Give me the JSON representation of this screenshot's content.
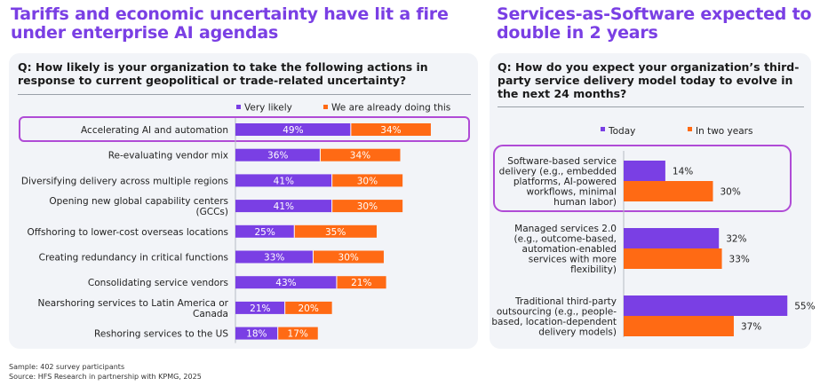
{
  "left": {
    "title_line1": "Tariffs and economic uncertainty have lit a fire",
    "title_line2": "under enterprise AI agendas",
    "question": "Q: How likely is your organization to take the following actions in response to current geopolitical or trade-related uncertainty?"
  },
  "right": {
    "title_line1": "Services-as-Software expected to",
    "title_line2": "double in 2 years",
    "question": "Q: How do you expect your organization’s third-party service delivery model today to evolve in the next 24 months?"
  },
  "footnotes": {
    "sample": "Sample: 402 survey participants",
    "source": "Source: HFS Research in partnership with KPMG, 2025"
  },
  "colors": {
    "purple": "#7a3fe4",
    "orange": "#ff6a14",
    "highlight": "#b04bd6"
  },
  "chart_data": [
    {
      "type": "bar",
      "orientation": "horizontal",
      "stacked": true,
      "title": "Tariffs and economic uncertainty have lit a fire under enterprise AI agendas",
      "legend_position": "top-right",
      "value_suffix": "%",
      "highlight_index": 0,
      "categories": [
        [
          "Accelerating AI and automation"
        ],
        [
          "Re-evaluating vendor mix"
        ],
        [
          "Diversifying delivery across multiple regions"
        ],
        [
          "Opening new global capability centers",
          "(GCCs)"
        ],
        [
          "Offshoring to lower-cost overseas locations"
        ],
        [
          "Creating redundancy in critical functions"
        ],
        [
          "Consolidating service vendors"
        ],
        [
          "Nearshoring services to Latin America or",
          "Canada"
        ],
        [
          "Reshoring services to the US"
        ]
      ],
      "series": [
        {
          "name": "Very likely",
          "color": "#7a3fe4",
          "values": [
            49,
            36,
            41,
            41,
            25,
            33,
            43,
            21,
            18
          ]
        },
        {
          "name": "We are already doing this",
          "color": "#ff6a14",
          "values": [
            34,
            34,
            30,
            30,
            35,
            30,
            21,
            20,
            17
          ]
        }
      ]
    },
    {
      "type": "bar",
      "orientation": "horizontal",
      "stacked": false,
      "title": "Services-as-Software expected to double in 2 years",
      "legend_position": "top-left",
      "value_suffix": "%",
      "highlight_index": 0,
      "categories": [
        [
          "Software-based service",
          "delivery (e.g., embedded",
          "platforms, AI-powered",
          "workflows, minimal",
          "human labor)"
        ],
        [
          "Managed services 2.0",
          "(e.g., outcome-based,",
          "automation-enabled",
          "services with more",
          "flexibility)"
        ],
        [
          "Traditional third-party",
          "outsourcing (e.g., people-",
          "based, location-dependent",
          "delivery models)"
        ]
      ],
      "series": [
        {
          "name": "Today",
          "color": "#7a3fe4",
          "values": [
            14,
            32,
            55
          ]
        },
        {
          "name": "In two years",
          "color": "#ff6a14",
          "values": [
            30,
            33,
            37
          ]
        }
      ]
    }
  ]
}
